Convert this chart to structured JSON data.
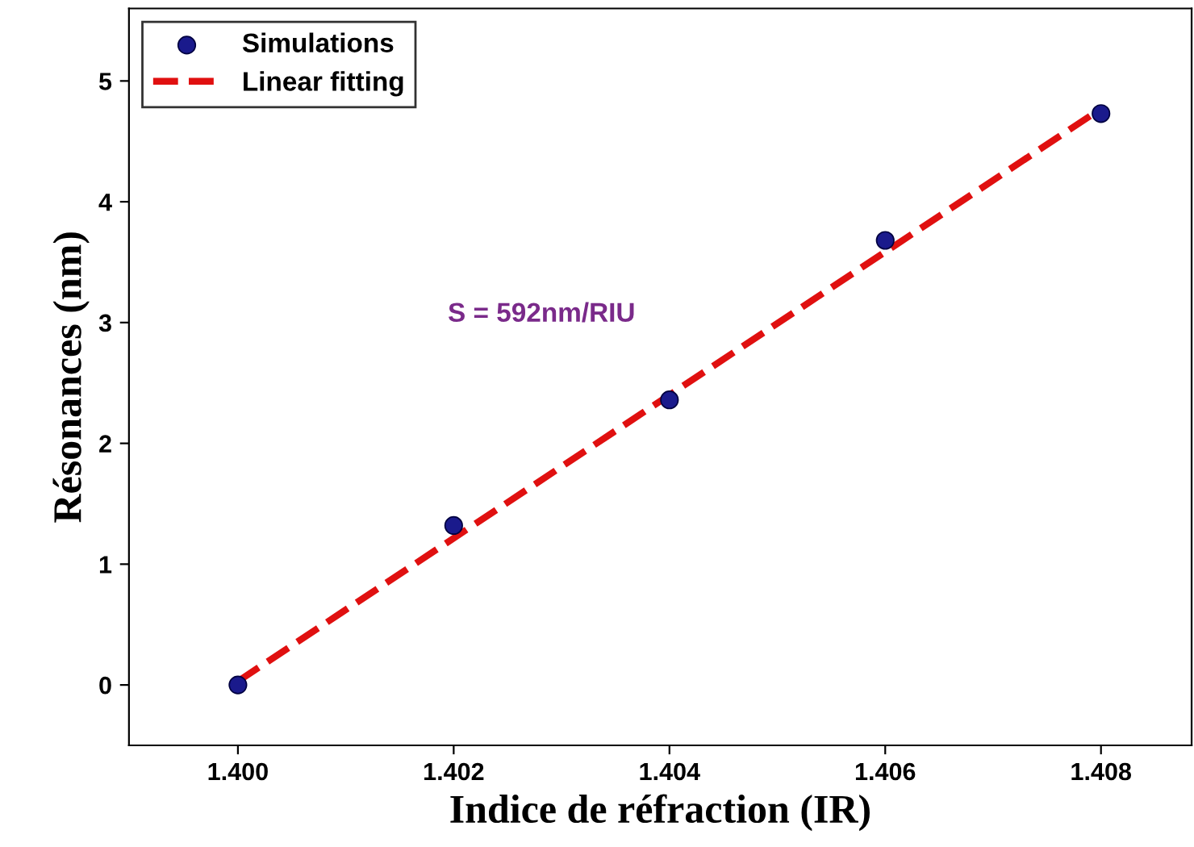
{
  "chart_data": {
    "type": "scatter",
    "xlabel": "Indice de réfraction (IR)",
    "ylabel": "Résonances (nm)",
    "x": [
      1.4,
      1.402,
      1.404,
      1.406,
      1.408
    ],
    "series": [
      {
        "name": "Simulations",
        "color": "#1a1a8c",
        "values": [
          0,
          1.32,
          2.36,
          3.68,
          4.73
        ],
        "marker": "circle"
      },
      {
        "name": "Linear fitting",
        "type": "line",
        "color": "#e01010",
        "x": [
          1.4,
          1.408
        ],
        "values": [
          0.03,
          4.77
        ],
        "line_style": "dashed",
        "marker": "none"
      }
    ],
    "annotations": [
      "S = 592nm/RIU"
    ],
    "xlim": [
      1.39899,
      1.40884
    ],
    "ylim": [
      -0.5,
      5.6
    ],
    "xticks": [
      {
        "value": 1.4,
        "label": "1.400"
      },
      {
        "value": 1.402,
        "label": "1.402"
      },
      {
        "value": 1.404,
        "label": "1.404"
      },
      {
        "value": 1.406,
        "label": "1.406"
      },
      {
        "value": 1.408,
        "label": "1.408"
      }
    ],
    "yticks": [
      0,
      1,
      2,
      3,
      4,
      5
    ],
    "legend": "top left",
    "grid": false
  }
}
